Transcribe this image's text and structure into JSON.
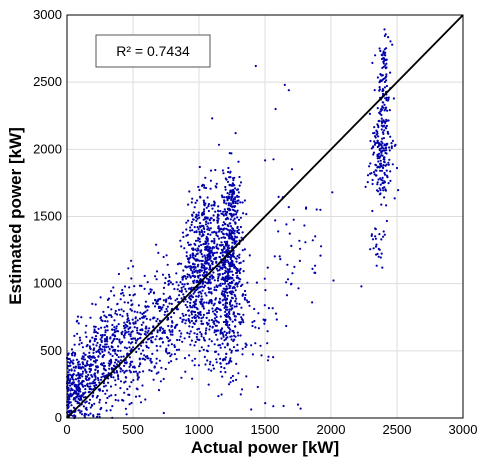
{
  "chart_data": {
    "type": "scatter",
    "xlabel": "Actual power [kW]",
    "ylabel": "Estimated power [kW]",
    "xlim": [
      0,
      3000
    ],
    "ylim": [
      0,
      3000
    ],
    "xticks": [
      "0",
      "500",
      "1000",
      "1500",
      "2000",
      "2500",
      "3000"
    ],
    "yticks": [
      "0",
      "500",
      "1000",
      "1500",
      "2000",
      "2500",
      "3000"
    ],
    "grid": true,
    "marker_color": "#0000aa",
    "reference_line": {
      "points": [
        [
          0,
          0
        ],
        [
          3000,
          3000
        ]
      ],
      "color": "#000000"
    },
    "annotation": "R² = 0.7434",
    "clusters": [
      {
        "cx": 60,
        "cy": 220,
        "sx": 60,
        "sy": 140,
        "n": 260
      },
      {
        "cx": 250,
        "cy": 400,
        "sx": 110,
        "sy": 190,
        "n": 320
      },
      {
        "cx": 480,
        "cy": 560,
        "sx": 120,
        "sy": 200,
        "n": 280
      },
      {
        "cx": 750,
        "cy": 750,
        "sx": 110,
        "sy": 220,
        "n": 240
      },
      {
        "cx": 980,
        "cy": 1000,
        "sx": 70,
        "sy": 220,
        "n": 320
      },
      {
        "cx": 1060,
        "cy": 1350,
        "sx": 60,
        "sy": 200,
        "n": 260
      },
      {
        "cx": 1230,
        "cy": 1150,
        "sx": 50,
        "sy": 320,
        "n": 520
      },
      {
        "cx": 1250,
        "cy": 1650,
        "sx": 30,
        "sy": 120,
        "n": 80
      },
      {
        "cx": 1150,
        "cy": 700,
        "sx": 90,
        "sy": 200,
        "n": 160
      },
      {
        "cx": 1450,
        "cy": 600,
        "sx": 110,
        "sy": 250,
        "n": 50
      },
      {
        "cx": 1700,
        "cy": 1300,
        "sx": 170,
        "sy": 260,
        "n": 40
      },
      {
        "cx": 2380,
        "cy": 1950,
        "sx": 45,
        "sy": 200,
        "n": 200
      },
      {
        "cx": 2400,
        "cy": 2550,
        "sx": 25,
        "sy": 170,
        "n": 90
      },
      {
        "cx": 2350,
        "cy": 1300,
        "sx": 25,
        "sy": 90,
        "n": 25
      }
    ],
    "points": [
      [
        1650,
        2480
      ],
      [
        1680,
        2440
      ],
      [
        1430,
        2620
      ],
      [
        1580,
        2300
      ],
      [
        1680,
        1570
      ],
      [
        1860,
        1110
      ],
      [
        1880,
        1080
      ],
      [
        1920,
        1550
      ],
      [
        2010,
        1680
      ],
      [
        1770,
        70
      ],
      [
        1700,
        1000
      ],
      [
        1660,
        1010
      ],
      [
        2230,
        980
      ],
      [
        1750,
        100
      ],
      [
        1100,
        2230
      ]
    ],
    "seed": 7
  }
}
